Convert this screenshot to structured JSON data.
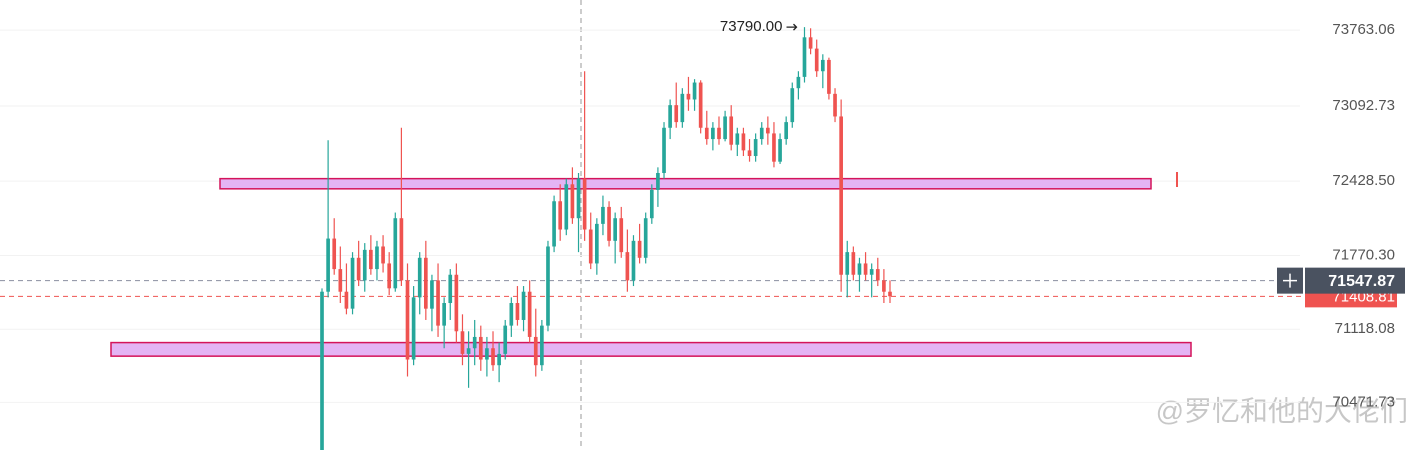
{
  "chart_data": {
    "type": "candlestick",
    "up_color": "#26a69a",
    "down_color": "#ef5350",
    "grid": true,
    "ylim": [
      70050,
      74030
    ],
    "yticks": [
      73763.06,
      73092.73,
      {
        "value": 72428.5,
        "label": "72428.50"
      },
      {
        "value": 71770.3,
        "label": "71770.30"
      },
      71118.08,
      70471.73
    ],
    "high_label": {
      "value": 73790,
      "label": "73790.00"
    },
    "last_price": 71547.87,
    "mark_price": 71408.81,
    "zones": [
      {
        "top": 72450,
        "bottom": 72360,
        "color": "#e4b4f4"
      },
      {
        "top": 71000,
        "bottom": 70880,
        "color": "#e4b4f4"
      }
    ],
    "candles": [
      [
        70050,
        71480,
        70030,
        71450
      ],
      [
        71450,
        72790,
        71400,
        71920
      ],
      [
        71920,
        72100,
        71600,
        71650
      ],
      [
        71650,
        71850,
        71350,
        71450
      ],
      [
        71450,
        71700,
        71250,
        71300
      ],
      [
        71300,
        71800,
        71250,
        71750
      ],
      [
        71750,
        71900,
        71500,
        71550
      ],
      [
        71550,
        71880,
        71450,
        71820
      ],
      [
        71820,
        71950,
        71600,
        71650
      ],
      [
        71650,
        71900,
        71550,
        71850
      ],
      [
        71850,
        71950,
        71620,
        71700
      ],
      [
        71700,
        71800,
        71420,
        71480
      ],
      [
        71480,
        72150,
        71450,
        72100
      ],
      [
        72100,
        72900,
        71500,
        71550
      ],
      [
        71550,
        71700,
        70700,
        70850
      ],
      [
        70850,
        71500,
        70800,
        71400
      ],
      [
        71400,
        71800,
        71250,
        71750
      ],
      [
        71750,
        71900,
        71200,
        71300
      ],
      [
        71300,
        71600,
        71100,
        71550
      ],
      [
        71550,
        71700,
        71050,
        71150
      ],
      [
        71150,
        71400,
        70950,
        71350
      ],
      [
        71350,
        71650,
        71200,
        71600
      ],
      [
        71600,
        71700,
        71000,
        71100
      ],
      [
        71100,
        71250,
        70800,
        70900
      ],
      [
        70900,
        71100,
        70600,
        70950
      ],
      [
        70950,
        71200,
        70800,
        71050
      ],
      [
        71050,
        71150,
        70750,
        70850
      ],
      [
        70850,
        71050,
        70700,
        70950
      ],
      [
        70950,
        71100,
        70750,
        70800
      ],
      [
        70800,
        71000,
        70650,
        70900
      ],
      [
        70900,
        71200,
        70850,
        71150
      ],
      [
        71150,
        71400,
        71050,
        71350
      ],
      [
        71350,
        71500,
        71150,
        71200
      ],
      [
        71200,
        71500,
        71100,
        71450
      ],
      [
        71450,
        71550,
        71000,
        71050
      ],
      [
        71050,
        71300,
        70700,
        70800
      ],
      [
        70800,
        71200,
        70750,
        71150
      ],
      [
        71150,
        71900,
        71100,
        71850
      ],
      [
        71850,
        72300,
        71800,
        72250
      ],
      [
        72250,
        72400,
        71900,
        72000
      ],
      [
        72000,
        72450,
        71950,
        72400
      ],
      [
        72400,
        72550,
        72050,
        72100
      ],
      [
        72100,
        72500,
        71800,
        72450
      ],
      [
        72450,
        73400,
        71900,
        72000
      ],
      [
        72000,
        72150,
        71650,
        71700
      ],
      [
        71700,
        72100,
        71600,
        72050
      ],
      [
        72050,
        72300,
        71950,
        72200
      ],
      [
        72200,
        72250,
        71850,
        71900
      ],
      [
        71900,
        72150,
        71700,
        72100
      ],
      [
        72100,
        72200,
        71750,
        71800
      ],
      [
        71800,
        72000,
        71450,
        71550
      ],
      [
        71550,
        71950,
        71500,
        71900
      ],
      [
        71900,
        72050,
        71700,
        71750
      ],
      [
        71750,
        72150,
        71700,
        72100
      ],
      [
        72100,
        72400,
        72050,
        72350
      ],
      [
        72350,
        72550,
        72200,
        72500
      ],
      [
        72500,
        72950,
        72450,
        72900
      ],
      [
        72900,
        73150,
        72800,
        73100
      ],
      [
        73100,
        73300,
        72900,
        72950
      ],
      [
        72950,
        73250,
        72900,
        73200
      ],
      [
        73200,
        73350,
        73050,
        73150
      ],
      [
        73150,
        73330,
        73050,
        73300
      ],
      [
        73300,
        73320,
        72850,
        72900
      ],
      [
        72900,
        73050,
        72750,
        72800
      ],
      [
        72800,
        72950,
        72700,
        72900
      ],
      [
        72900,
        73000,
        72750,
        72800
      ],
      [
        72800,
        73050,
        72780,
        73000
      ],
      [
        73000,
        73100,
        72700,
        72750
      ],
      [
        72750,
        72900,
        72650,
        72850
      ],
      [
        72850,
        72900,
        72650,
        72700
      ],
      [
        72700,
        72800,
        72600,
        72650
      ],
      [
        72650,
        72850,
        72600,
        72800
      ],
      [
        72800,
        72950,
        72750,
        72900
      ],
      [
        72900,
        73000,
        72750,
        72850
      ],
      [
        72850,
        72950,
        72550,
        72600
      ],
      [
        72600,
        72850,
        72580,
        72800
      ],
      [
        72800,
        73000,
        72750,
        72950
      ],
      [
        72950,
        73300,
        72900,
        73250
      ],
      [
        73250,
        73400,
        73150,
        73350
      ],
      [
        73350,
        73790,
        73300,
        73700
      ],
      [
        73700,
        73780,
        73550,
        73600
      ],
      [
        73600,
        73680,
        73350,
        73400
      ],
      [
        73400,
        73550,
        73250,
        73500
      ],
      [
        73500,
        73520,
        73150,
        73200
      ],
      [
        73200,
        73250,
        72950,
        73000
      ],
      [
        73000,
        73150,
        71450,
        71600
      ],
      [
        71600,
        71900,
        71400,
        71800
      ],
      [
        71800,
        71850,
        71550,
        71600
      ],
      [
        71600,
        71750,
        71450,
        71700
      ],
      [
        71700,
        71800,
        71550,
        71600
      ],
      [
        71600,
        71700,
        71400,
        71650
      ],
      [
        71650,
        71750,
        71500,
        71550
      ],
      [
        71550,
        71650,
        71350,
        71450
      ],
      [
        71450,
        71550,
        71350,
        71410
      ]
    ]
  },
  "watermark": "@罗忆和他的大佬们"
}
